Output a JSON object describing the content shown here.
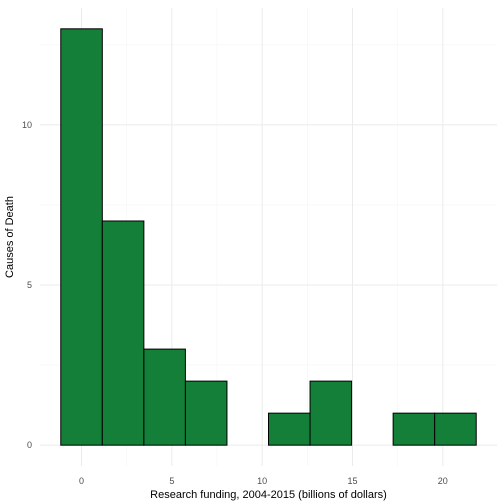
{
  "chart_data": {
    "type": "bar",
    "subtype": "histogram",
    "xlabel": "Research funding, 2004-2015 (billions of dollars)",
    "ylabel": "Causes of Death",
    "bins": [
      {
        "x_start": -1.15,
        "x_end": 1.15,
        "count": 13
      },
      {
        "x_start": 1.15,
        "x_end": 3.45,
        "count": 7
      },
      {
        "x_start": 3.45,
        "x_end": 5.75,
        "count": 3
      },
      {
        "x_start": 5.75,
        "x_end": 8.05,
        "count": 2
      },
      {
        "x_start": 8.05,
        "x_end": 10.35,
        "count": 0
      },
      {
        "x_start": 10.35,
        "x_end": 12.65,
        "count": 1
      },
      {
        "x_start": 12.65,
        "x_end": 14.95,
        "count": 2
      },
      {
        "x_start": 14.95,
        "x_end": 17.25,
        "count": 0
      },
      {
        "x_start": 17.25,
        "x_end": 19.55,
        "count": 1
      },
      {
        "x_start": 19.55,
        "x_end": 21.85,
        "count": 1
      }
    ],
    "xlim": [
      -2.3,
      23.0
    ],
    "ylim": [
      -0.65,
      13.65
    ],
    "x_ticks": [
      0,
      5,
      10,
      15,
      20
    ],
    "y_ticks": [
      0,
      5,
      10
    ],
    "grid": true,
    "legend": "none",
    "colors": {
      "bar_fill": "#137f38",
      "bar_border": "#000000",
      "grid": "#ebebeb"
    }
  }
}
